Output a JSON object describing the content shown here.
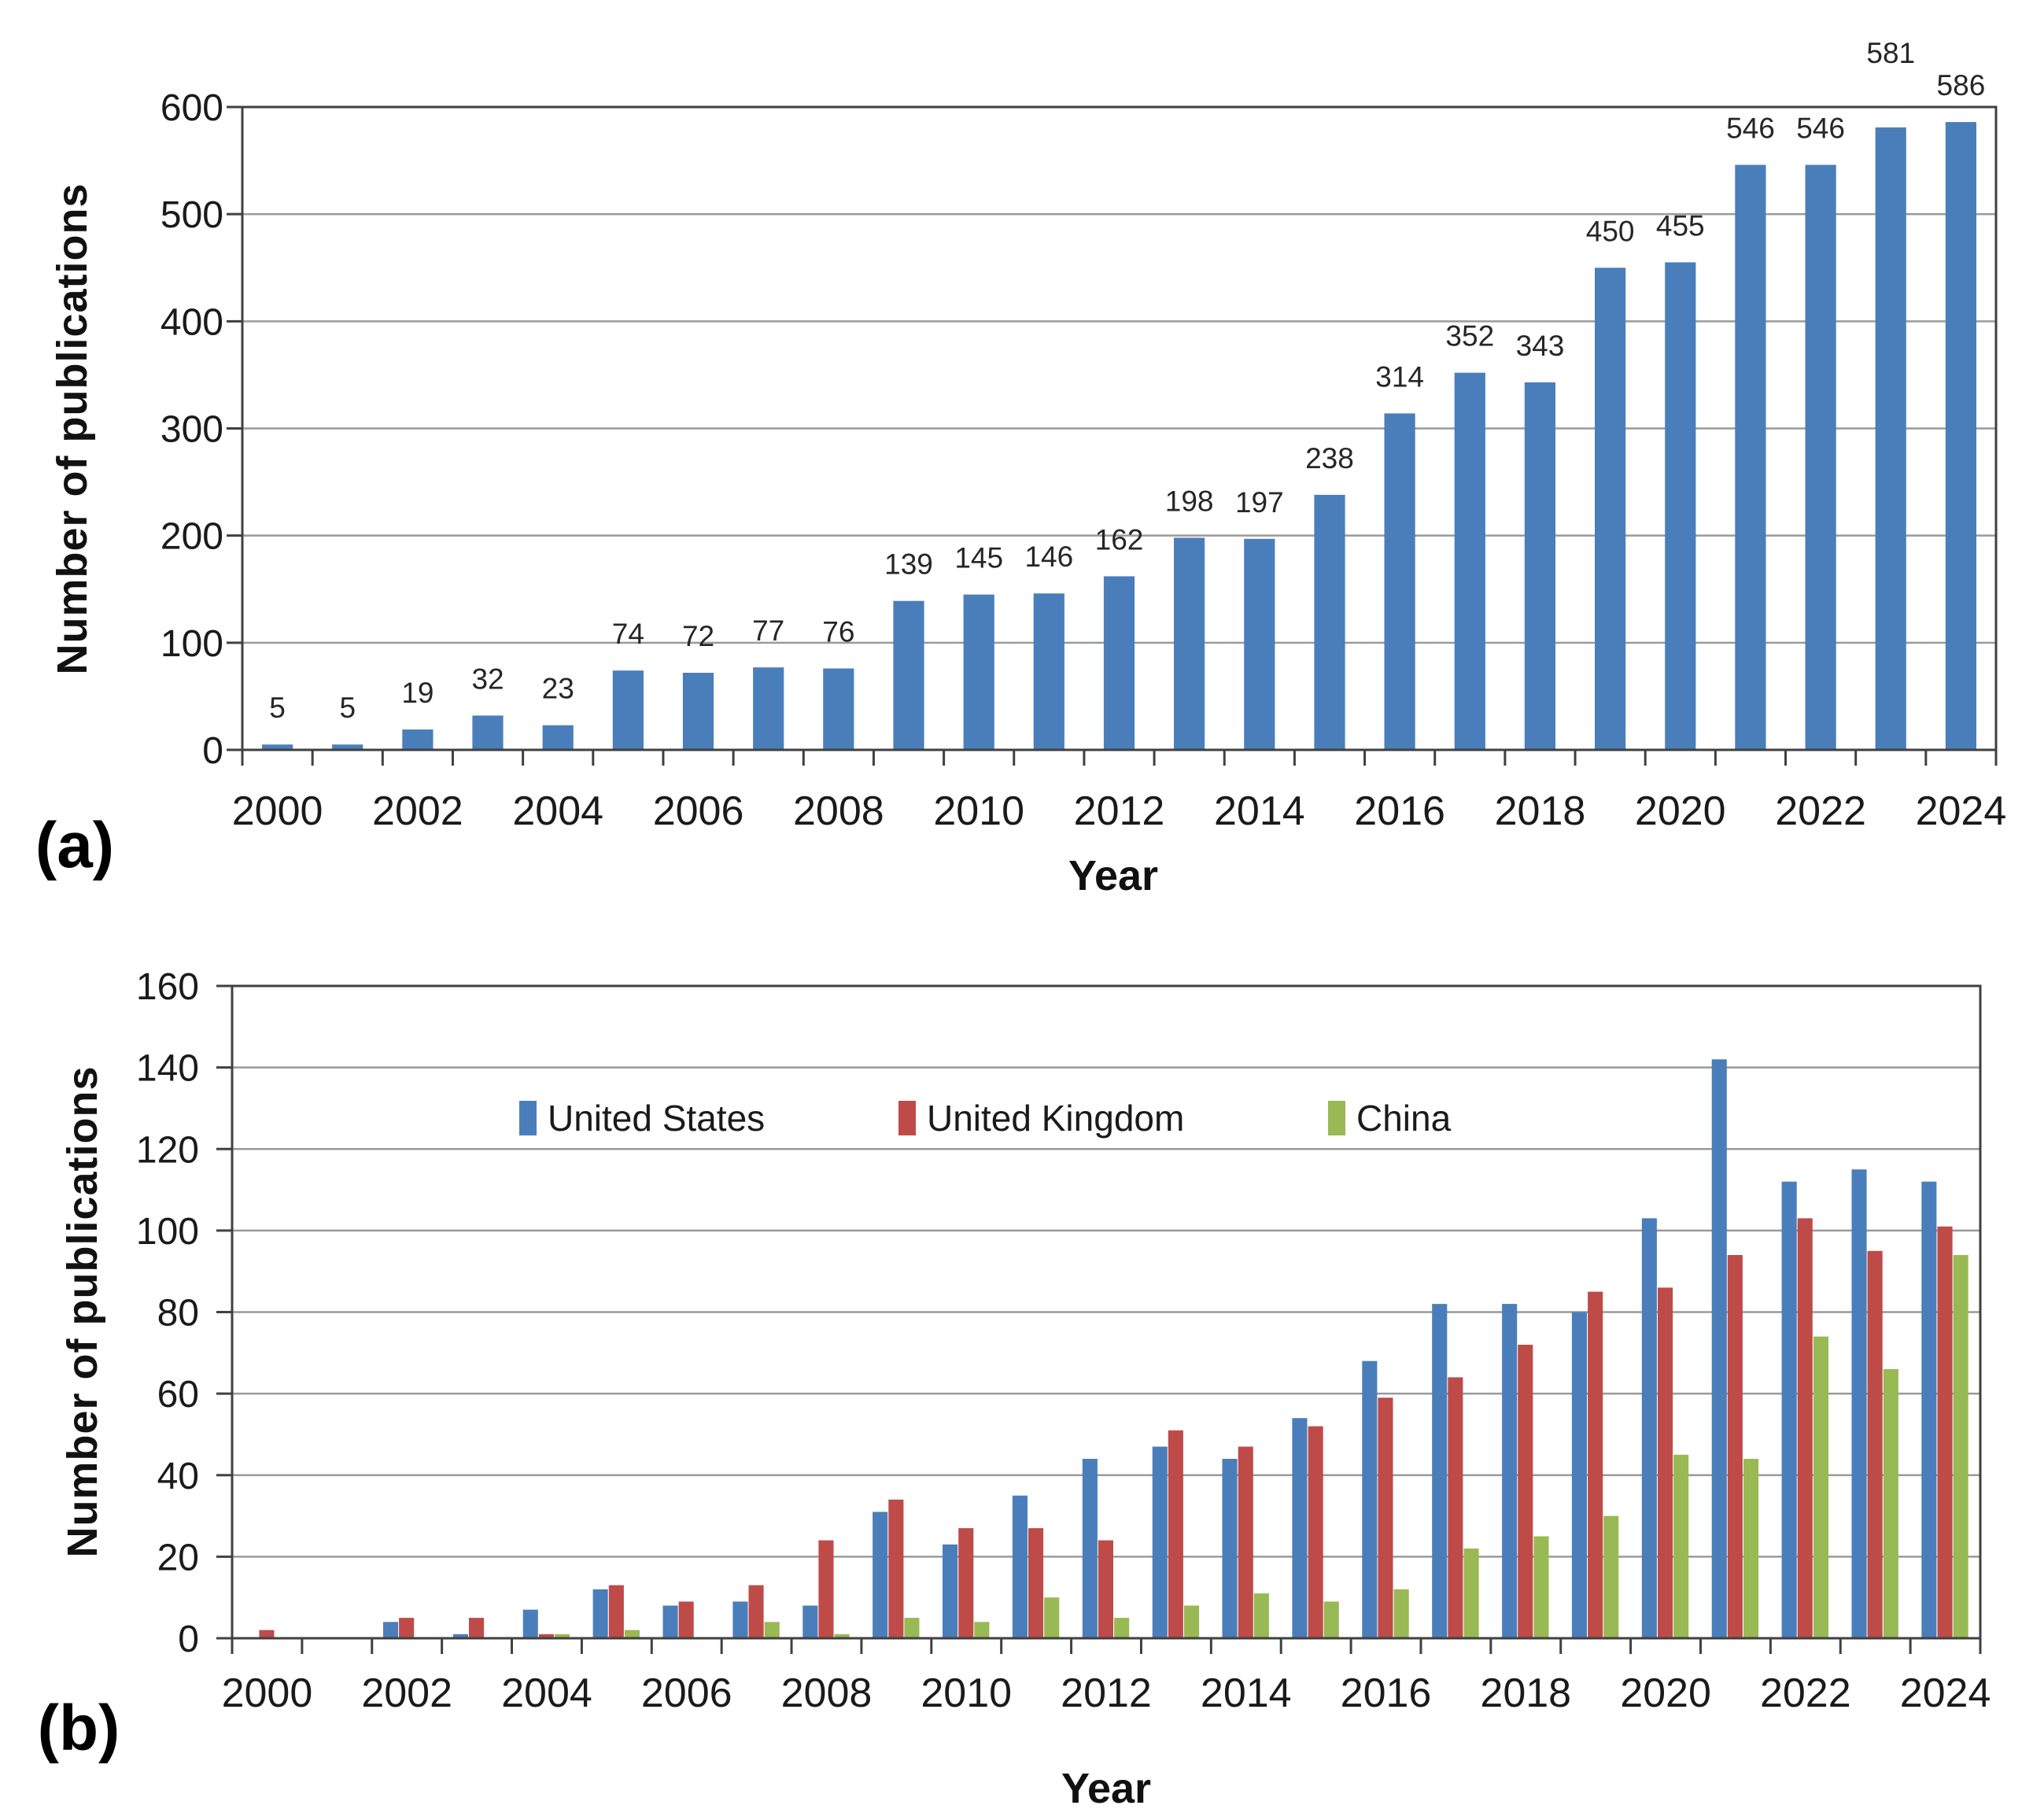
{
  "figure": {
    "background": "#ffffff",
    "panel_a": {
      "letter": "(a)",
      "ylabel": "Number of publications",
      "xlabel": "Year"
    },
    "panel_b": {
      "letter": "(b)",
      "ylabel": "Number of publications",
      "xlabel": "Year"
    }
  },
  "colors": {
    "bar_blue": "#4A7EBB",
    "bar_red": "#BE4B48",
    "bar_green": "#98B954",
    "gridline": "#9a9a9a",
    "axis": "#404040",
    "text": "#1a1a1a"
  },
  "chart_data": [
    {
      "type": "bar",
      "title": "",
      "xlabel": "Year",
      "ylabel": "Number of publications",
      "categories": [
        2000,
        2001,
        2002,
        2003,
        2004,
        2005,
        2006,
        2007,
        2008,
        2009,
        2010,
        2011,
        2012,
        2013,
        2014,
        2015,
        2016,
        2017,
        2018,
        2019,
        2020,
        2021,
        2022,
        2023,
        2024
      ],
      "series": [
        {
          "name": "Publications",
          "color": "#4A7EBB",
          "values": [
            5,
            5,
            19,
            32,
            23,
            74,
            72,
            77,
            76,
            139,
            145,
            146,
            162,
            198,
            197,
            238,
            314,
            352,
            343,
            450,
            455,
            546,
            546,
            581,
            586
          ]
        }
      ],
      "bar_labels": true,
      "label_y_offsets": [
        0,
        0,
        0,
        0,
        0,
        0,
        0,
        0,
        0,
        0,
        0,
        0,
        0,
        0,
        0,
        0,
        0,
        0,
        0,
        0,
        0,
        0,
        0,
        -48,
        0
      ],
      "ylim": [
        0,
        600
      ],
      "ytick": 100,
      "xtick_every": 2,
      "grid": true,
      "legend_position": "none"
    },
    {
      "type": "bar",
      "title": "",
      "xlabel": "Year",
      "ylabel": "Number of publications",
      "categories": [
        2000,
        2001,
        2002,
        2003,
        2004,
        2005,
        2006,
        2007,
        2008,
        2009,
        2010,
        2011,
        2012,
        2013,
        2014,
        2015,
        2016,
        2017,
        2018,
        2019,
        2020,
        2021,
        2022,
        2023,
        2024
      ],
      "series": [
        {
          "name": "United States",
          "color": "#4A7EBB",
          "values": [
            0,
            0,
            4,
            1,
            7,
            12,
            8,
            9,
            8,
            31,
            23,
            35,
            44,
            47,
            44,
            54,
            68,
            82,
            82,
            80,
            103,
            142,
            112,
            115,
            112
          ]
        },
        {
          "name": "United Kingdom",
          "color": "#BE4B48",
          "values": [
            2,
            0,
            5,
            5,
            1,
            13,
            9,
            13,
            24,
            34,
            27,
            27,
            24,
            51,
            47,
            52,
            59,
            64,
            72,
            85,
            86,
            94,
            103,
            95,
            101
          ]
        },
        {
          "name": "China",
          "color": "#98B954",
          "values": [
            0,
            0,
            0,
            0,
            1,
            2,
            0,
            4,
            1,
            5,
            4,
            10,
            5,
            8,
            11,
            9,
            12,
            22,
            25,
            30,
            45,
            44,
            74,
            66,
            94
          ]
        }
      ],
      "bar_labels": false,
      "ylim": [
        0,
        160
      ],
      "ytick": 20,
      "xtick_every": 2,
      "grid": true,
      "legend_position": "inside-top"
    }
  ]
}
